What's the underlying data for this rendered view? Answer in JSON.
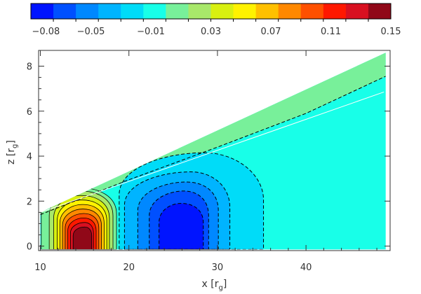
{
  "chart_data": {
    "type": "heatmap",
    "subtype": "filled-contour",
    "title": "",
    "xlabel": "x [r",
    "xlabel_sub": "g",
    "xlabel_close": "]",
    "ylabel": "z [r",
    "ylabel_sub": "g",
    "ylabel_close": "]",
    "xlim": [
      9.8,
      49.5
    ],
    "ylim": [
      -0.2,
      8.7
    ],
    "x_ticks": [
      10,
      20,
      30,
      40
    ],
    "x_tick_labels": [
      "10",
      "20",
      "30",
      "40"
    ],
    "y_ticks": [
      0,
      2,
      4,
      6,
      8
    ],
    "y_tick_labels": [
      "0",
      "2",
      "4",
      "6",
      "8"
    ],
    "colorbar": {
      "orientation": "horizontal",
      "position": "top",
      "range": [
        -0.09,
        0.15
      ],
      "colors": [
        "#0014ff",
        "#0050ff",
        "#0088ff",
        "#00b4ff",
        "#00dcf8",
        "#18ffe8",
        "#78f09a",
        "#a8e86a",
        "#d8f010",
        "#fff200",
        "#ffc000",
        "#ff8800",
        "#ff5000",
        "#ff1800",
        "#d81020",
        "#900818"
      ],
      "tick_values": [
        -0.08,
        -0.05,
        -0.01,
        0.03,
        0.07,
        0.11,
        0.15
      ],
      "tick_labels": [
        "−0.08",
        "−0.05",
        "−0.01",
        "0.03",
        "0.07",
        "0.11",
        "0.15"
      ]
    },
    "domain": {
      "x_range": [
        10,
        49
      ],
      "top_surface": [
        [
          10,
          1.5
        ],
        [
          49,
          8.6
        ]
      ],
      "bottom": -0.15
    },
    "white_line": [
      [
        10,
        1.5
      ],
      [
        48.8,
        6.85
      ]
    ],
    "contour_regions": [
      {
        "level": -0.01,
        "color": "#18ffe8",
        "note": "background"
      },
      {
        "level": 0.01,
        "color": "#78f09a",
        "note": "upper layer"
      },
      {
        "level": -0.03,
        "color": "#00dcf8"
      },
      {
        "level": -0.05,
        "color": "#00b4ff"
      },
      {
        "level": -0.06,
        "color": "#0088ff"
      },
      {
        "level": -0.07,
        "color": "#0050ff"
      },
      {
        "level": -0.08,
        "color": "#0014ff"
      },
      {
        "level": 0.0,
        "color": "#78f09a"
      },
      {
        "level": 0.01,
        "color": "#a8e86a"
      },
      {
        "level": 0.03,
        "color": "#d8f010"
      },
      {
        "level": 0.05,
        "color": "#fff200"
      },
      {
        "level": 0.07,
        "color": "#ffc000"
      },
      {
        "level": 0.09,
        "color": "#ff8800"
      },
      {
        "level": 0.11,
        "color": "#ff5000"
      },
      {
        "level": 0.12,
        "color": "#ff1800"
      },
      {
        "level": 0.13,
        "color": "#d81020"
      },
      {
        "level": 0.14,
        "color": "#900818"
      }
    ]
  }
}
